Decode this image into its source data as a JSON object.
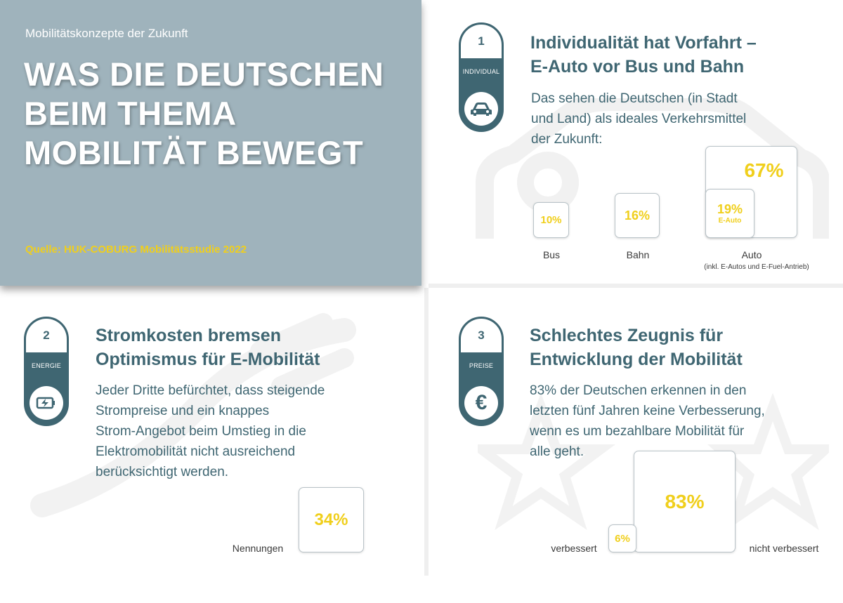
{
  "hero": {
    "kicker": "Mobilitätskonzepte der Zukunft",
    "title_lines": [
      "WAS DIE DEUTSCHEN",
      "BEIM THEMA",
      "MOBILITÄT BEWEGT"
    ],
    "source": "Quelle: HUK-COBURG Mobilitätsstudie 2022"
  },
  "section1": {
    "number": "1",
    "tag": "INDIVIDUAL",
    "icon": "car-icon",
    "heading_lines": [
      "Individualität hat Vorfahrt –",
      "E-Auto vor Bus und Bahn"
    ],
    "body_lines": [
      "Das sehen die Deutschen (in Stadt",
      "und Land) als ideales Verkehrsmittel",
      "der Zukunft:"
    ]
  },
  "section2": {
    "number": "2",
    "tag": "ENERGIE",
    "icon": "battery-charging-icon",
    "heading_lines": [
      "Stromkosten bremsen",
      "Optimismus für E-Mobilität"
    ],
    "body_lines": [
      "Jeder Dritte befürchtet, dass steigende",
      "Strompreise und ein knappes",
      "Strom-Angebot beim Umstieg in die",
      "Elektromobilität nicht ausreichend",
      "berücksichtigt werden."
    ]
  },
  "section3": {
    "number": "3",
    "tag": "PREISE",
    "icon": "euro-icon",
    "heading_lines": [
      "Schlechtes Zeugnis für",
      "Entwicklung der Mobilität"
    ],
    "body_lines": [
      "83% der Deutschen erkennen in den",
      "letzten fünf Jahren keine Verbesserung,",
      "wenn es um bezahlbare Mobilität für",
      "alle geht."
    ]
  },
  "colors": {
    "accent": "#f0cf1c",
    "primary": "#3f6672",
    "hero_bg": "#9fb3bc"
  },
  "chart_data": [
    {
      "type": "bar",
      "categories": [
        "Bus",
        "Bahn",
        "Auto"
      ],
      "values": [
        10,
        16,
        67
      ],
      "value_labels": [
        "10%",
        "16%",
        "67%"
      ],
      "category_note": "(inkl. E-Autos und E-Fuel-Antrieb)",
      "sub_value": {
        "value": 19,
        "label": "19%",
        "name": "E-Auto"
      }
    },
    {
      "type": "bar",
      "categories": [
        "Nennungen"
      ],
      "values": [
        34
      ],
      "value_labels": [
        "34%"
      ]
    },
    {
      "type": "bar",
      "categories": [
        "verbessert",
        "nicht verbessert"
      ],
      "values": [
        6,
        83
      ],
      "value_labels": [
        "6%",
        "83%"
      ]
    }
  ]
}
